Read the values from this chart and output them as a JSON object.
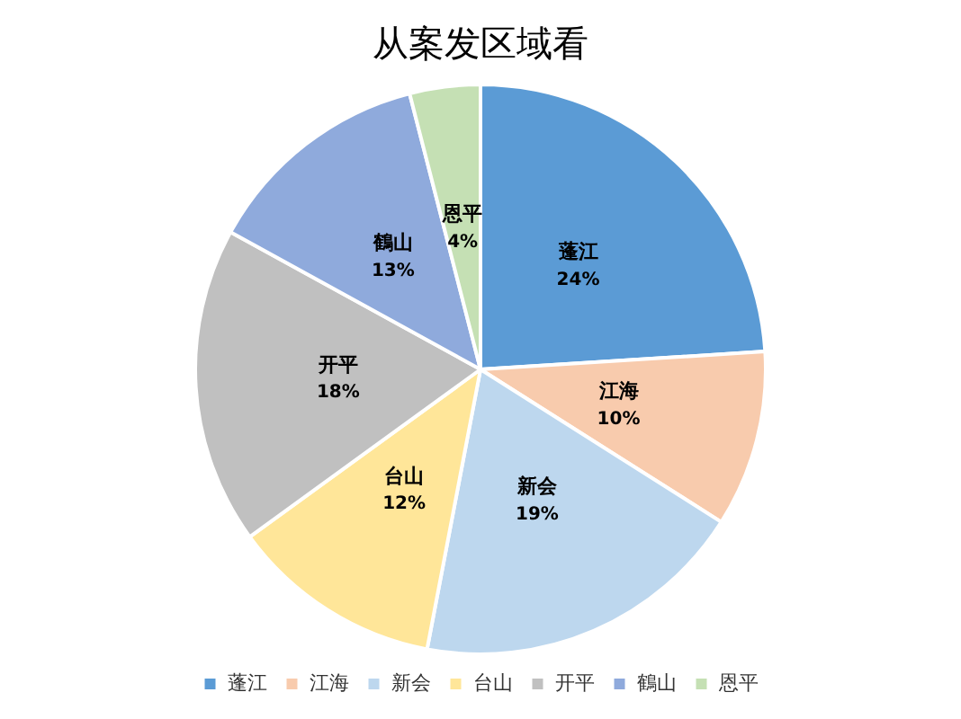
{
  "chart_data": {
    "type": "pie",
    "title": "从案发区域看",
    "categories": [
      "蓬江",
      "江海",
      "新会",
      "台山",
      "开平",
      "鶴山",
      "恩平"
    ],
    "values": [
      24,
      10,
      19,
      12,
      18,
      13,
      4
    ],
    "colors": [
      "#5b9bd5",
      "#f8cbad",
      "#bdd7ee",
      "#ffe699",
      "#c0c0c0",
      "#8faadc",
      "#c5e0b4"
    ],
    "value_labels": [
      "24%",
      "10%",
      "19%",
      "12%",
      "18%",
      "13%",
      "4%"
    ],
    "legend": "bottom"
  }
}
